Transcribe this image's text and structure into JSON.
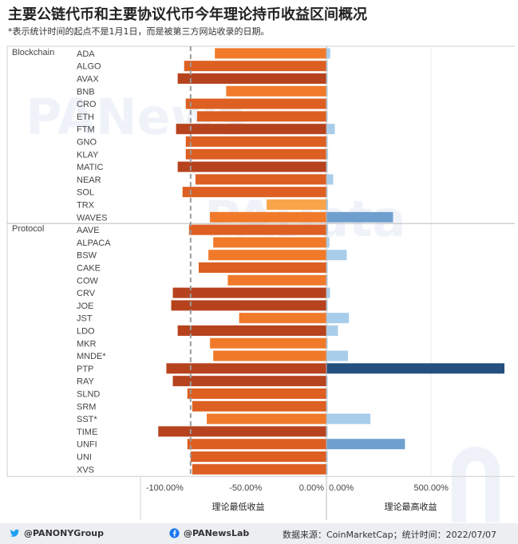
{
  "title": "主要公链代币和主要协议代币今年理论持币收益区间概况",
  "subtitle": "*表示统计时间的起点不是1月1日，而是被第三方网站收录的日期。",
  "watermarks": [
    "PANews",
    "PAData"
  ],
  "footer": {
    "twitter": "@PANONYGroup",
    "facebook": "@PANewsLab",
    "source": "数据来源：CoinMarketCap；统计时间：2022/07/07"
  },
  "chart_data": {
    "type": "bar",
    "groups": [
      "Blockchain",
      "Protocol"
    ],
    "left_panel": {
      "xlabel": "理论最低收益",
      "ticks": [
        "-100.00%",
        "-50.00%",
        "0.00%"
      ],
      "xlim": [
        -115,
        0
      ],
      "reference_line": -84
    },
    "right_panel": {
      "xlabel": "理论最高收益",
      "ticks": [
        "0.00%",
        "500.00%"
      ],
      "xlim": [
        0,
        850
      ]
    },
    "rows": [
      {
        "group": "Blockchain",
        "name": "ADA",
        "min": -69,
        "max": 18
      },
      {
        "group": "Blockchain",
        "name": "ALGO",
        "min": -88,
        "max": 4
      },
      {
        "group": "Blockchain",
        "name": "AVAX",
        "min": -92,
        "max": 5
      },
      {
        "group": "Blockchain",
        "name": "BNB",
        "min": -62,
        "max": 3
      },
      {
        "group": "Blockchain",
        "name": "CRO",
        "min": -87,
        "max": 4
      },
      {
        "group": "Blockchain",
        "name": "ETH",
        "min": -80,
        "max": 3
      },
      {
        "group": "Blockchain",
        "name": "FTM",
        "min": -93,
        "max": 40
      },
      {
        "group": "Blockchain",
        "name": "GNO",
        "min": -87,
        "max": 5
      },
      {
        "group": "Blockchain",
        "name": "KLAY",
        "min": -87,
        "max": 8
      },
      {
        "group": "Blockchain",
        "name": "MATIC",
        "min": -92,
        "max": 6
      },
      {
        "group": "Blockchain",
        "name": "NEAR",
        "min": -81,
        "max": 32
      },
      {
        "group": "Blockchain",
        "name": "SOL",
        "min": -89,
        "max": 5
      },
      {
        "group": "Blockchain",
        "name": "TRX",
        "min": -37,
        "max": 8
      },
      {
        "group": "Blockchain",
        "name": "WAVES",
        "min": -72,
        "max": 318
      },
      {
        "group": "Protocol",
        "name": "AAVE",
        "min": -85,
        "max": 8
      },
      {
        "group": "Protocol",
        "name": "ALPACA",
        "min": -70,
        "max": 14
      },
      {
        "group": "Protocol",
        "name": "BSW",
        "min": -73,
        "max": 97
      },
      {
        "group": "Protocol",
        "name": "CAKE",
        "min": -79,
        "max": 6
      },
      {
        "group": "Protocol",
        "name": "COW",
        "min": -61,
        "max": 6
      },
      {
        "group": "Protocol",
        "name": "CRV",
        "min": -95,
        "max": 17
      },
      {
        "group": "Protocol",
        "name": "JOE",
        "min": -96,
        "max": 5
      },
      {
        "group": "Protocol",
        "name": "JST",
        "min": -54,
        "max": 107
      },
      {
        "group": "Protocol",
        "name": "LDO",
        "min": -92,
        "max": 55
      },
      {
        "group": "Protocol",
        "name": "MKR",
        "min": -72,
        "max": 3
      },
      {
        "group": "Protocol",
        "name": "MNDE*",
        "min": -70,
        "max": 103
      },
      {
        "group": "Protocol",
        "name": "PTP",
        "min": -99,
        "max": 850
      },
      {
        "group": "Protocol",
        "name": "RAY",
        "min": -95,
        "max": 6
      },
      {
        "group": "Protocol",
        "name": "SLND",
        "min": -86,
        "max": 3
      },
      {
        "group": "Protocol",
        "name": "SRM",
        "min": -83,
        "max": 3
      },
      {
        "group": "Protocol",
        "name": "SST*",
        "min": -74,
        "max": 210
      },
      {
        "group": "Protocol",
        "name": "TIME",
        "min": -104,
        "max": 6
      },
      {
        "group": "Protocol",
        "name": "UNFI",
        "min": -86,
        "max": 375
      },
      {
        "group": "Protocol",
        "name": "UNI",
        "min": -84,
        "max": 6
      },
      {
        "group": "Protocol",
        "name": "XVS",
        "min": -83,
        "max": 3
      }
    ],
    "colors": {
      "neg_light": "#f8a44a",
      "neg_mid": "#f07a2a",
      "neg_dark": "#dd5f22",
      "neg_deep": "#b6431e",
      "pos_light": "#a8cdea",
      "pos_mid": "#6f9fcf",
      "pos_deep": "#244f7e"
    }
  }
}
